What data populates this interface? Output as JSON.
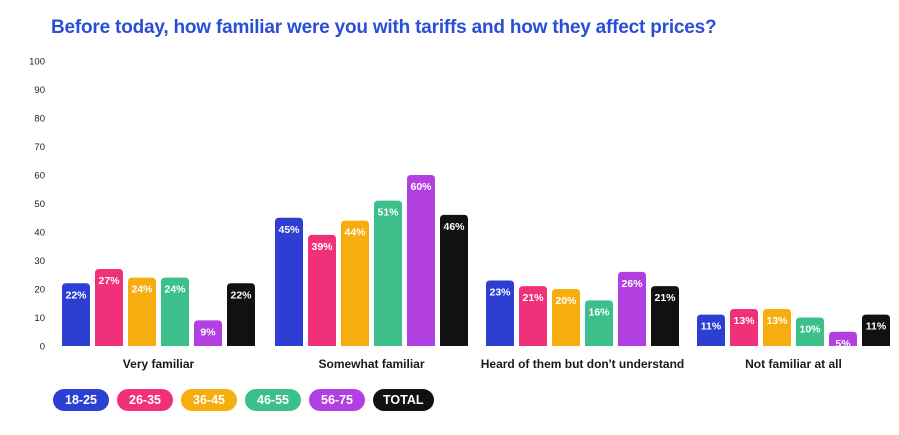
{
  "title": "Before today, how familiar were you with tariffs and how they affect prices?",
  "chart_data": {
    "type": "bar",
    "title": "Before today, how familiar were you with tariffs and how they affect prices?",
    "xlabel": "",
    "ylabel": "",
    "ylim": [
      0,
      100
    ],
    "yticks": [
      "100",
      "90",
      "80",
      "70",
      "60",
      "50",
      "40",
      "30",
      "20",
      "10",
      "0"
    ],
    "categories": [
      "Very familiar",
      "Somewhat familiar",
      "Heard of them but don't understand",
      "Not familiar at all"
    ],
    "series": [
      {
        "name": "18-25",
        "color": "#2d3fd3",
        "values": [
          22,
          45,
          23,
          11
        ],
        "labels": [
          "22%",
          "45%",
          "23%",
          "11%"
        ]
      },
      {
        "name": "26-35",
        "color": "#f0317a",
        "values": [
          27,
          39,
          21,
          13
        ],
        "labels": [
          "27%",
          "39%",
          "21%",
          "13%"
        ]
      },
      {
        "name": "36-45",
        "color": "#f6ad0f",
        "values": [
          24,
          44,
          20,
          13
        ],
        "labels": [
          "24%",
          "44%",
          "20%",
          "13%"
        ]
      },
      {
        "name": "46-55",
        "color": "#3dbf8c",
        "values": [
          24,
          51,
          16,
          10
        ],
        "labels": [
          "24%",
          "51%",
          "16%",
          "10%"
        ]
      },
      {
        "name": "56-75",
        "color": "#b23fe0",
        "values": [
          9,
          60,
          26,
          5
        ],
        "labels": [
          "9%",
          "60%",
          "26%",
          "5%"
        ]
      },
      {
        "name": "TOTAL",
        "color": "#111111",
        "values": [
          22,
          46,
          21,
          11
        ],
        "labels": [
          "22%",
          "46%",
          "21%",
          "11%"
        ]
      }
    ],
    "legend_position": "bottom-left",
    "grid": false
  }
}
